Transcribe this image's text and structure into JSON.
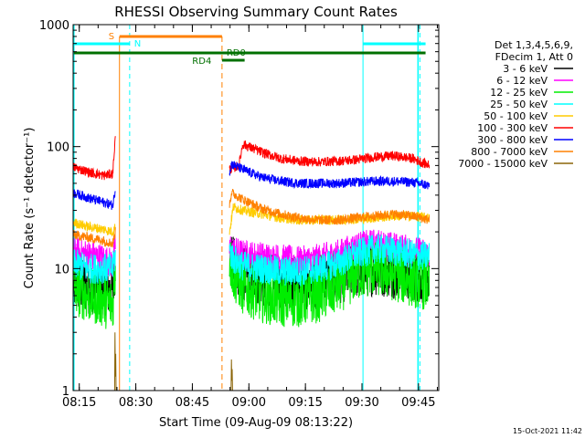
{
  "chart_data": {
    "type": "line",
    "title": "RHESSI Observing Summary Count Rates",
    "xlabel": "Start Time (09-Aug-09 08:13:22)",
    "ylabel": "Count Rate (s⁻¹ detector⁻¹)",
    "yscale": "log",
    "ylim": [
      1,
      1000
    ],
    "xlim_minutes": [
      0,
      97
    ],
    "x_ticks": [
      {
        "minutes": 1.63,
        "label": "08:15"
      },
      {
        "minutes": 16.63,
        "label": "08:30"
      },
      {
        "minutes": 31.63,
        "label": "08:45"
      },
      {
        "minutes": 46.63,
        "label": "09:00"
      },
      {
        "minutes": 61.63,
        "label": "09:15"
      },
      {
        "minutes": 76.63,
        "label": "09:30"
      },
      {
        "minutes": 91.63,
        "label": "09:45"
      }
    ],
    "y_ticks": [
      {
        "value": 1,
        "label": "1"
      },
      {
        "value": 10,
        "label": "10"
      },
      {
        "value": 100,
        "label": "100"
      },
      {
        "value": 1000,
        "label": "1000"
      }
    ],
    "legend_title": [
      "Det 1,3,4,5,6,9,",
      "FDecim 1, Att 0"
    ],
    "legend_position": "right",
    "series": [
      {
        "name": "3 - 6 keV",
        "color": "#000000",
        "x": [
          0,
          4,
          8,
          10.5,
          11.2,
          41.5,
          42.5,
          45,
          50,
          55,
          60,
          65,
          70,
          75,
          80,
          85,
          90,
          94.5
        ],
        "y": [
          7.5,
          7,
          7,
          6.5,
          12,
          13,
          11,
          9,
          8,
          7.8,
          7.7,
          7.8,
          8.5,
          9.5,
          10,
          9.5,
          9,
          8.5
        ]
      },
      {
        "name": "6 - 12 keV",
        "color": "#ff00ff",
        "x": [
          0,
          4,
          8,
          10.5,
          11.2,
          41.5,
          42.5,
          45,
          50,
          55,
          60,
          65,
          70,
          75,
          80,
          85,
          90,
          94.5
        ],
        "y": [
          14,
          13,
          12,
          11,
          15,
          15,
          14,
          13,
          12.5,
          12,
          11.5,
          12,
          13,
          15,
          16,
          15,
          14,
          13
        ]
      },
      {
        "name": "12 - 25 keV",
        "color": "#00ee00",
        "x": [
          0,
          4,
          8,
          10.5,
          11.2,
          41.5,
          42.5,
          45,
          50,
          55,
          60,
          65,
          70,
          75,
          80,
          85,
          90,
          94.5
        ],
        "y": [
          7,
          6,
          5.5,
          5,
          10,
          12,
          9,
          7,
          6,
          5.5,
          5.5,
          6,
          7,
          9,
          10,
          9,
          8,
          7.5
        ]
      },
      {
        "name": "25 - 50 keV",
        "color": "#00ffff",
        "x": [
          0,
          4,
          8,
          10.5,
          11.2,
          41.5,
          42.5,
          45,
          50,
          55,
          60,
          65,
          70,
          75,
          80,
          85,
          90,
          94.5
        ],
        "y": [
          11,
          10,
          10,
          10,
          13,
          14,
          12,
          10.5,
          10,
          9.5,
          9.5,
          10,
          11,
          13,
          14.5,
          14,
          13,
          12.5
        ]
      },
      {
        "name": "50 - 100 keV",
        "color": "#ffcc00",
        "x": [
          0,
          4,
          8,
          10.5,
          11.2,
          41.5,
          42.5,
          45,
          50,
          55,
          60,
          65,
          70,
          75,
          80,
          85,
          90,
          94.5
        ],
        "y": [
          24,
          22,
          21,
          20,
          22,
          20,
          32,
          30,
          28,
          26,
          25,
          25,
          25,
          25.5,
          26,
          27,
          27,
          26
        ]
      },
      {
        "name": "100 - 300 keV",
        "color": "#ff0000",
        "x": [
          0,
          4,
          8,
          10.5,
          11.2,
          41.5,
          44,
          45,
          50,
          55,
          60,
          65,
          70,
          75,
          80,
          85,
          90,
          94.5
        ],
        "y": [
          68,
          62,
          58,
          60,
          120,
          65,
          70,
          105,
          90,
          80,
          76,
          75,
          76,
          78,
          82,
          84,
          80,
          70
        ]
      },
      {
        "name": "300 - 800 keV",
        "color": "#0000ff",
        "x": [
          0,
          4,
          8,
          10.5,
          11.2,
          41.5,
          42,
          45,
          50,
          55,
          60,
          65,
          70,
          75,
          80,
          85,
          90,
          94.5
        ],
        "y": [
          42,
          38,
          35,
          33,
          45,
          62,
          72,
          65,
          56,
          52,
          50,
          50,
          50,
          51,
          52,
          52,
          51,
          48
        ]
      },
      {
        "name": "800 - 7000 keV",
        "color": "#ff8000",
        "x": [
          0,
          4,
          8,
          10.5,
          11.2,
          41.5,
          42,
          45,
          50,
          55,
          60,
          65,
          70,
          75,
          80,
          85,
          90,
          94.5
        ],
        "y": [
          19,
          18,
          17,
          16,
          20,
          34,
          42,
          37,
          31,
          28,
          26,
          25,
          25,
          26,
          27,
          28,
          27,
          25
        ]
      },
      {
        "name": "7000 - 15000 keV",
        "color": "#8b6508",
        "x": [
          11.0,
          11.1,
          11.2,
          11.3,
          11.4,
          41.9,
          42.0,
          42.1,
          42.2,
          42.3
        ],
        "y": [
          1,
          3,
          1.3,
          2,
          1,
          1,
          1.8,
          1.2,
          1.5,
          1
        ]
      }
    ],
    "flag_labels": {
      "s": "S",
      "n": "N",
      "rd4": "RD4",
      "rd0": "RD0"
    },
    "flag_colors": {
      "s": "#ff8000",
      "n": "#00ffff",
      "rd": "#007000",
      "saa": "#00ffff"
    }
  },
  "footer": {
    "timestamp": "15-Oct-2021 11:42"
  }
}
